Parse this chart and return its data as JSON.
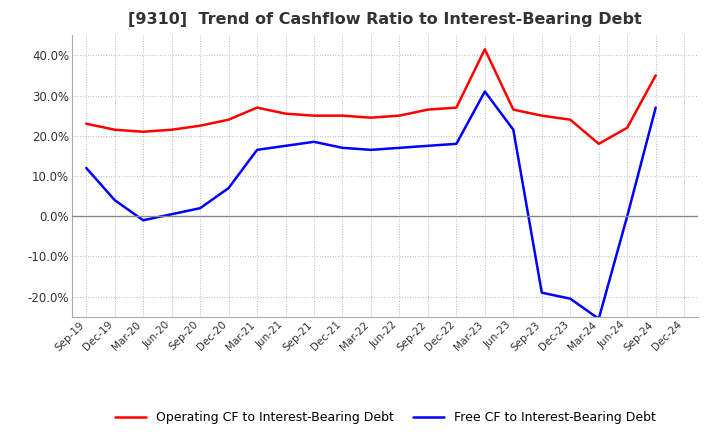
{
  "title": "[9310]  Trend of Cashflow Ratio to Interest-Bearing Debt",
  "x_labels": [
    "Sep-19",
    "Dec-19",
    "Mar-20",
    "Jun-20",
    "Sep-20",
    "Dec-20",
    "Mar-21",
    "Jun-21",
    "Sep-21",
    "Dec-21",
    "Mar-22",
    "Jun-22",
    "Sep-22",
    "Dec-22",
    "Mar-23",
    "Jun-23",
    "Sep-23",
    "Dec-23",
    "Mar-24",
    "Jun-24",
    "Sep-24",
    "Dec-24"
  ],
  "operating_cf": [
    23.0,
    21.5,
    21.0,
    21.5,
    22.5,
    24.0,
    27.0,
    25.5,
    25.0,
    25.0,
    24.5,
    25.0,
    26.5,
    27.0,
    41.5,
    26.5,
    25.0,
    24.0,
    18.0,
    22.0,
    35.0,
    null
  ],
  "free_cf": [
    12.0,
    4.0,
    -1.0,
    0.5,
    2.0,
    7.0,
    16.5,
    17.5,
    18.5,
    17.0,
    16.5,
    17.0,
    17.5,
    18.0,
    31.0,
    21.5,
    -19.0,
    -20.5,
    -25.5,
    0.0,
    27.0,
    null
  ],
  "operating_color": "#ff0000",
  "free_color": "#0000ff",
  "ylim": [
    -25,
    45
  ],
  "yticks": [
    -20.0,
    -10.0,
    0.0,
    10.0,
    20.0,
    30.0,
    40.0
  ],
  "background_color": "#ffffff",
  "grid_color": "#bbbbbb",
  "legend_op": "Operating CF to Interest-Bearing Debt",
  "legend_free": "Free CF to Interest-Bearing Debt",
  "title_color": "#333333",
  "title_fontsize": 11.5
}
